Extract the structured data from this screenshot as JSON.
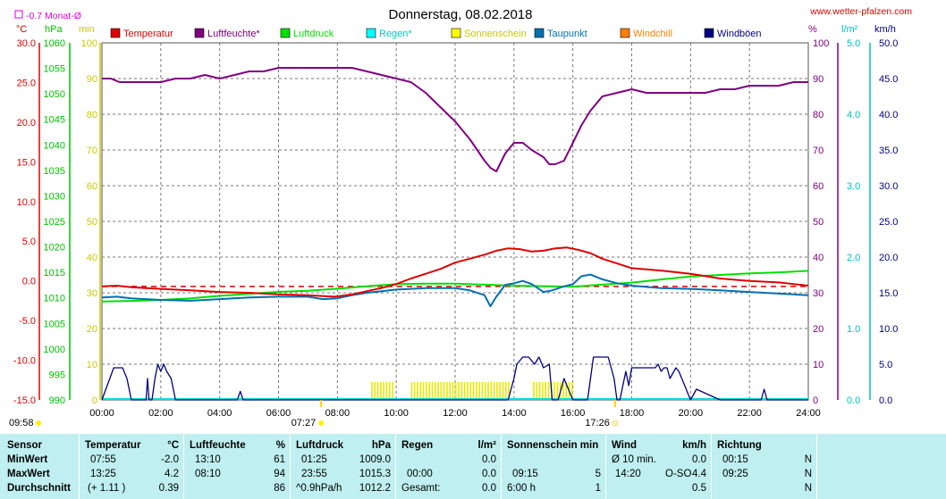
{
  "chart_data": {
    "type": "line",
    "title": "Donnerstag, 08.02.2018",
    "source": "www.wetter-pfalzen.com",
    "monthly_avg_label": "-0.7 Monat-Ø",
    "monthly_avg_temp": -0.7,
    "axis_units": {
      "temp": "°C",
      "pressure": "hPa",
      "sun": "min",
      "humidity": "%",
      "rain": "l/m²",
      "wind": "km/h"
    },
    "temp_range": [
      -15,
      30
    ],
    "pressure_range": [
      990,
      1060
    ],
    "sun_range": [
      0,
      100
    ],
    "humidity_range": [
      0,
      100
    ],
    "rain_range": [
      0,
      5
    ],
    "wind_range": [
      0,
      50
    ],
    "temp_ticks": [
      "30.0",
      "25.0",
      "20.0",
      "15.0",
      "10.0",
      "5.0",
      "0.0",
      "-5.0",
      "-10.0",
      "-15.0"
    ],
    "pressure_ticks": [
      "1060",
      "1055",
      "1050",
      "1045",
      "1040",
      "1035",
      "1030",
      "1025",
      "1020",
      "1015",
      "1010",
      "1005",
      "1000",
      "995",
      "990"
    ],
    "sun_ticks": [
      "100",
      "90",
      "80",
      "70",
      "60",
      "50",
      "40",
      "30",
      "20",
      "10",
      "0"
    ],
    "humidity_ticks": [
      "100",
      "90",
      "80",
      "70",
      "60",
      "50",
      "40",
      "30",
      "20",
      "10",
      "0"
    ],
    "rain_ticks": [
      "5.0",
      "4.0",
      "3.0",
      "2.0",
      "1.0",
      "0.0"
    ],
    "wind_ticks": [
      "50.0",
      "45.0",
      "40.0",
      "35.0",
      "30.0",
      "25.0",
      "20.0",
      "15.0",
      "10.0",
      "5.0",
      "0.0"
    ],
    "x_ticks": [
      "00:00",
      "02:00",
      "04:00",
      "06:00",
      "08:00",
      "10:00",
      "12:00",
      "14:00",
      "16:00",
      "18:00",
      "20:00",
      "22:00",
      "24:00"
    ],
    "sunrise": "07:27",
    "sunset": "17:26",
    "day_length": "09:58",
    "legend": [
      {
        "name": "Temperatur",
        "color": "#e00000"
      },
      {
        "name": "Luftfeuchte*",
        "color": "#800080"
      },
      {
        "name": "Luftdruck",
        "color": "#00e000"
      },
      {
        "name": "Regen*",
        "color": "#00ffff"
      },
      {
        "name": "Sonnenschein",
        "color": "#ffff00"
      },
      {
        "name": "Taupunkt",
        "color": "#0070b0"
      },
      {
        "name": "Windchill",
        "color": "#ff8000"
      },
      {
        "name": "Windböen",
        "color": "#000080"
      }
    ],
    "series": [
      {
        "name": "Temperatur",
        "unit": "°C",
        "color": "#e00000",
        "x": [
          0,
          0.5,
          1,
          1.5,
          2,
          3,
          4,
          5,
          6,
          7,
          7.9,
          8.5,
          9,
          9.5,
          10,
          10.5,
          11,
          11.5,
          12,
          12.5,
          13,
          13.4,
          13.8,
          14.2,
          14.6,
          15,
          15.4,
          15.8,
          16.2,
          16.6,
          17,
          17.5,
          18,
          19,
          20,
          20.5,
          21,
          22,
          23,
          24
        ],
        "y": [
          -0.7,
          -0.6,
          -0.8,
          -0.9,
          -1.0,
          -1.2,
          -1.4,
          -1.5,
          -1.7,
          -1.8,
          -2.0,
          -1.7,
          -1.3,
          -0.9,
          -0.4,
          0.3,
          0.9,
          1.5,
          2.3,
          2.8,
          3.3,
          3.8,
          4.1,
          4.0,
          3.7,
          3.8,
          4.1,
          4.2,
          3.9,
          3.5,
          2.8,
          2.2,
          1.6,
          1.3,
          0.9,
          0.6,
          0.3,
          0.0,
          -0.2,
          -0.6
        ]
      },
      {
        "name": "Luftfeuchte*",
        "unit": "%",
        "color": "#800080",
        "x": [
          0,
          0.3,
          0.6,
          1,
          1.5,
          2,
          2.5,
          3,
          3.5,
          4,
          4.5,
          5,
          5.5,
          6,
          6.5,
          7,
          7.5,
          8,
          8.5,
          9,
          9.5,
          10,
          10.5,
          11,
          11.5,
          12,
          12.5,
          13,
          13.2,
          13.4,
          13.7,
          14,
          14.3,
          14.6,
          15,
          15.2,
          15.4,
          15.7,
          16,
          16.3,
          16.6,
          17,
          17.5,
          18,
          18.5,
          19,
          19.5,
          20,
          20.5,
          21,
          21.5,
          22,
          22.5,
          23,
          23.5,
          24
        ],
        "y": [
          90,
          90,
          89,
          89,
          89,
          89,
          90,
          90,
          91,
          90,
          91,
          92,
          92,
          93,
          93,
          93,
          93,
          93,
          93,
          92,
          91,
          90,
          89,
          86,
          82,
          78,
          73,
          67,
          65,
          64,
          69,
          72,
          72,
          70,
          68,
          66,
          66,
          67,
          72,
          77,
          81,
          85,
          86,
          87,
          86,
          86,
          86,
          86,
          86,
          87,
          87,
          88,
          88,
          88,
          89,
          89
        ]
      },
      {
        "name": "Luftdruck",
        "unit": "hPa",
        "color": "#00e000",
        "x": [
          0,
          1,
          2,
          3,
          4,
          5,
          6,
          7,
          8,
          9,
          10,
          11,
          12,
          13,
          14,
          15,
          16,
          17,
          18,
          19,
          20,
          21,
          22,
          23,
          24
        ],
        "y": [
          1009.3,
          1009.4,
          1009.6,
          1009.9,
          1010.4,
          1010.8,
          1011.2,
          1011.4,
          1011.8,
          1012.3,
          1012.7,
          1012.8,
          1012.8,
          1012.6,
          1012.4,
          1012.3,
          1012.2,
          1012.6,
          1013.0,
          1013.6,
          1014.2,
          1014.5,
          1014.8,
          1015.0,
          1015.3
        ]
      },
      {
        "name": "Taupunkt",
        "unit": "°C",
        "color": "#0070b0",
        "x": [
          0,
          0.5,
          1,
          2,
          3,
          4,
          5,
          6,
          7,
          7.5,
          8,
          8.5,
          9,
          9.5,
          10,
          10.5,
          11,
          11.5,
          12,
          12.5,
          13,
          13.2,
          13.4,
          13.7,
          14,
          14.3,
          14.6,
          15,
          15.3,
          15.6,
          16,
          16.3,
          16.6,
          17,
          17.5,
          18,
          19,
          20,
          21,
          22,
          23,
          24
        ],
        "y": [
          -2.1,
          -2.0,
          -2.2,
          -2.4,
          -2.5,
          -2.3,
          -2.1,
          -2.0,
          -2.0,
          -2.3,
          -2.2,
          -1.8,
          -1.5,
          -1.3,
          -1.1,
          -1.0,
          -0.9,
          -0.9,
          -0.9,
          -1.2,
          -1.8,
          -3.2,
          -2.0,
          -0.5,
          -0.3,
          0.0,
          -0.4,
          -1.4,
          -1.2,
          -0.8,
          -0.4,
          0.6,
          0.8,
          0.2,
          -0.3,
          -0.6,
          -0.9,
          -1.0,
          -1.2,
          -1.4,
          -1.6,
          -1.8
        ]
      },
      {
        "name": "Windböen",
        "unit": "km/h",
        "color": "#000080",
        "x": [
          0,
          0.4,
          0.55,
          0.7,
          0.85,
          1.0,
          1.3,
          1.5,
          1.55,
          1.6,
          1.7,
          1.8,
          1.9,
          2.0,
          2.1,
          2.2,
          2.35,
          2.5,
          2.6,
          4.6,
          4.7,
          4.8,
          13.8,
          14.0,
          14.1,
          14.3,
          14.5,
          14.7,
          14.85,
          15.0,
          15.2,
          15.3,
          15.5,
          15.7,
          15.85,
          16.0,
          16.5,
          16.7,
          17.0,
          17.2,
          17.4,
          17.5,
          17.6,
          17.8,
          17.9,
          18.0,
          18.2,
          18.8,
          18.9,
          19.0,
          19.1,
          19.2,
          19.3,
          19.5,
          19.6,
          19.8,
          19.9,
          20.0,
          20.2,
          21.0,
          22.4,
          22.5,
          22.6,
          24
        ],
        "y": [
          0,
          4.5,
          4.5,
          4.5,
          3.0,
          0,
          0,
          0,
          3.0,
          0,
          0,
          3.0,
          5.0,
          4.0,
          5.0,
          4.0,
          3.0,
          0,
          0,
          0,
          1.2,
          0,
          0,
          3.0,
          5.0,
          6.0,
          6.0,
          5.0,
          6.0,
          4.5,
          5.0,
          0,
          0,
          3.0,
          1.5,
          0,
          0,
          6.0,
          6.0,
          6.0,
          3.0,
          0,
          0,
          4.0,
          2.0,
          4.5,
          4.5,
          4.5,
          5.0,
          4.0,
          4.5,
          4.5,
          3.0,
          4.5,
          4.0,
          2.0,
          1.0,
          0,
          1.5,
          0,
          0,
          1.5,
          0,
          0
        ]
      }
    ],
    "sunshine_intervals": [
      [
        9.15,
        9.9
      ],
      [
        10.5,
        13.8
      ],
      [
        14.65,
        15.95
      ]
    ],
    "rain": {
      "unit": "l/m²",
      "values": [
        0.0
      ]
    }
  },
  "table": {
    "row_labels": [
      "Sensor",
      "MinWert",
      "MaxWert",
      "Durchschnitt"
    ],
    "temperature": {
      "header": "Temperatur",
      "unit": "°C",
      "min_time": "07:55",
      "min": "-2.0",
      "max_time": "13:25",
      "max": "4.2",
      "avg_note": "(+ 1.11 )",
      "avg": "0.39"
    },
    "humidity": {
      "header": "Luftfeuchte",
      "unit": "%",
      "min_time": "13:10",
      "min": "61",
      "max_time": "08:10",
      "max": "94",
      "avg": "86"
    },
    "pressure": {
      "header": "Luftdruck",
      "unit": "hPa",
      "min_time": "01:25",
      "min": "1009.0",
      "max_time": "23:55",
      "max": "1015.3",
      "avg_note": "^0.9hPa/h",
      "avg": "1012.2"
    },
    "rain": {
      "header": "Regen",
      "unit": "l/m²",
      "min": "0.0",
      "max_time": "00:00",
      "max": "0.0",
      "avg_label": "Gesamt:",
      "avg": "0.0"
    },
    "sunshine": {
      "header": "Sonnenschein min",
      "max_time": "09:15",
      "max": "5",
      "avg_label": "6:00 h",
      "avg": "1"
    },
    "wind": {
      "header": "Wind",
      "unit": "km/h",
      "min_label": "Ø 10 min.",
      "min": "0.0",
      "max_time": "14:20",
      "max_dir": "O-SO",
      "max": "4.4",
      "avg": "0.5"
    },
    "direction": {
      "header": "Richtung",
      "min_time": "00:15",
      "min": "N",
      "max_time": "09:25",
      "max": "N",
      "avg": "N"
    }
  }
}
